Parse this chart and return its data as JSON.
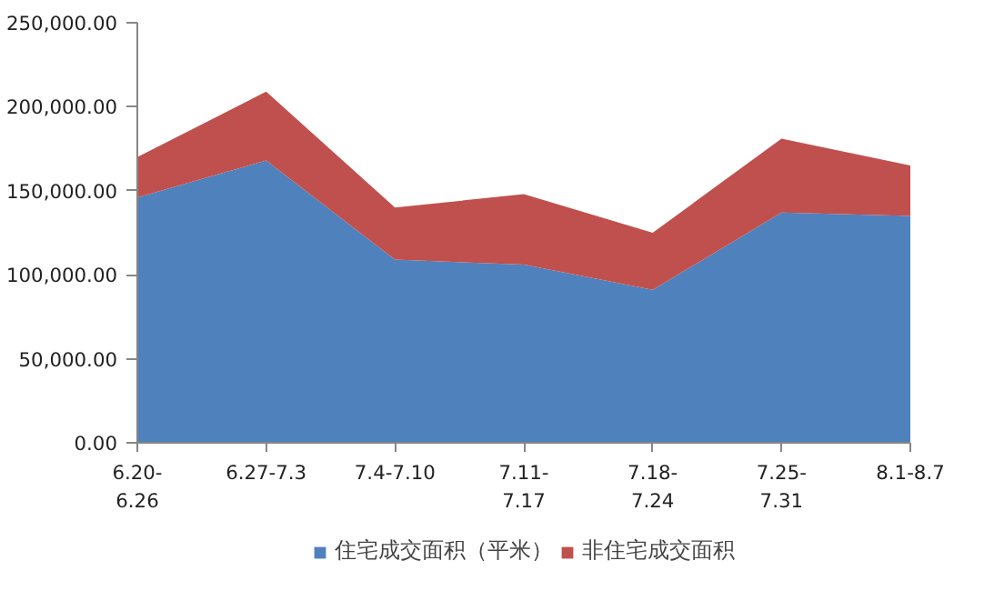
{
  "chart_data": {
    "type": "area",
    "stacked": true,
    "categories": [
      "6.20-6.26",
      "6.27-7.3",
      "7.4-7.10",
      "7.11-7.17",
      "7.18-7.24",
      "7.25-7.31",
      "8.1-8.7"
    ],
    "series": [
      {
        "name": "住宅成交面积（平米）",
        "color": "#4f81bd",
        "values": [
          146000,
          168000,
          109000,
          106000,
          91000,
          137000,
          135000
        ]
      },
      {
        "name": "非住宅成交面积",
        "color": "#c0504d",
        "values": [
          24000,
          41000,
          31000,
          42000,
          34000,
          44000,
          30000
        ]
      }
    ],
    "ylim": [
      0,
      250000
    ],
    "yticks": [
      {
        "value": 0,
        "label": "0.00"
      },
      {
        "value": 50000,
        "label": "50,000.00"
      },
      {
        "value": 100000,
        "label": "100,000.00"
      },
      {
        "value": 150000,
        "label": "150,000.00"
      },
      {
        "value": 200000,
        "label": "200,000.00"
      },
      {
        "value": 250000,
        "label": "250,000.00"
      }
    ],
    "grid": false,
    "legend": "bottom"
  }
}
